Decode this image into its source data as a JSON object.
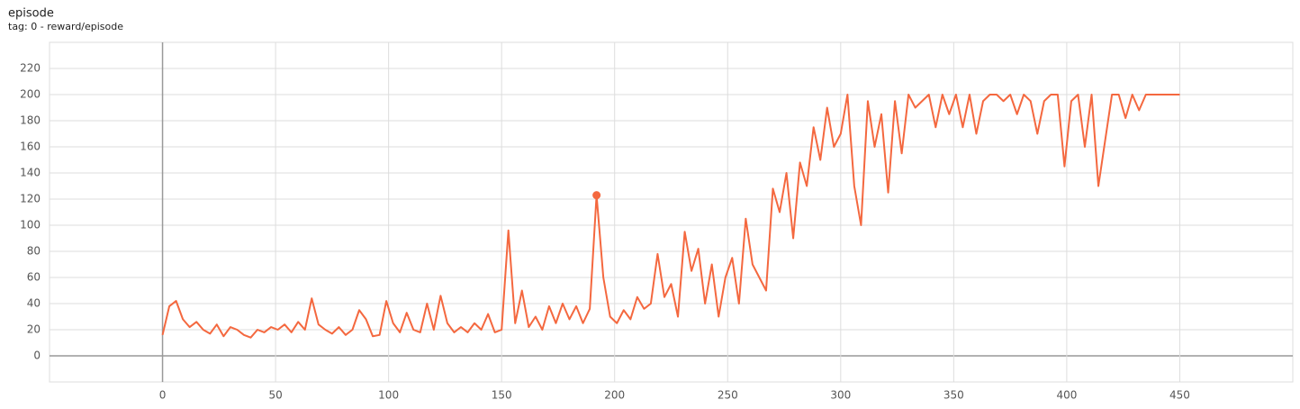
{
  "chart_data": {
    "type": "line",
    "title": "episode",
    "subtitle": "tag: 0 - reward/episode",
    "x": [
      0,
      3,
      6,
      9,
      12,
      15,
      18,
      21,
      24,
      27,
      30,
      33,
      36,
      39,
      42,
      45,
      48,
      51,
      54,
      57,
      60,
      63,
      66,
      69,
      72,
      75,
      78,
      81,
      84,
      87,
      90,
      93,
      96,
      99,
      102,
      105,
      108,
      111,
      114,
      117,
      120,
      123,
      126,
      129,
      132,
      135,
      138,
      141,
      144,
      147,
      150,
      153,
      156,
      159,
      162,
      165,
      168,
      171,
      174,
      177,
      180,
      183,
      186,
      189,
      192,
      195,
      198,
      201,
      204,
      207,
      210,
      213,
      216,
      219,
      222,
      225,
      228,
      231,
      234,
      237,
      240,
      243,
      246,
      249,
      252,
      255,
      258,
      261,
      264,
      267,
      270,
      273,
      276,
      279,
      282,
      285,
      288,
      291,
      294,
      297,
      300,
      303,
      306,
      309,
      312,
      315,
      318,
      321,
      324,
      327,
      330,
      333,
      336,
      339,
      342,
      345,
      348,
      351,
      354,
      357,
      360,
      363,
      366,
      369,
      372,
      375,
      378,
      381,
      384,
      387,
      390,
      393,
      396,
      399,
      402,
      405,
      408,
      411,
      414,
      417,
      420,
      423,
      426,
      429,
      432,
      435,
      438,
      441,
      444,
      447,
      450
    ],
    "series": [
      {
        "name": "reward/episode",
        "color": "#f4683f",
        "values": [
          16,
          38,
          42,
          28,
          22,
          26,
          20,
          17,
          24,
          15,
          22,
          20,
          16,
          14,
          20,
          18,
          22,
          20,
          24,
          18,
          26,
          20,
          44,
          24,
          20,
          17,
          22,
          16,
          20,
          35,
          28,
          15,
          16,
          42,
          25,
          18,
          33,
          20,
          18,
          40,
          20,
          46,
          25,
          18,
          22,
          18,
          25,
          20,
          32,
          18,
          20,
          96,
          25,
          50,
          22,
          30,
          20,
          38,
          25,
          40,
          28,
          38,
          25,
          36,
          123,
          60,
          30,
          25,
          35,
          28,
          45,
          36,
          40,
          78,
          45,
          55,
          30,
          95,
          65,
          82,
          40,
          70,
          30,
          60,
          75,
          40,
          105,
          70,
          60,
          50,
          128,
          110,
          140,
          90,
          148,
          130,
          175,
          150,
          190,
          160,
          170,
          200,
          130,
          100,
          195,
          160,
          185,
          125,
          195,
          155,
          200,
          190,
          195,
          200,
          175,
          200,
          185,
          200,
          175,
          200,
          170,
          195,
          200,
          200,
          195,
          200,
          185,
          200,
          195,
          170,
          195,
          200,
          200,
          145,
          195,
          200,
          160,
          200,
          130,
          165,
          200,
          200,
          182,
          200,
          188,
          200,
          200,
          200,
          200,
          200,
          200
        ]
      }
    ],
    "highlight": {
      "x": 192,
      "y": 123
    },
    "xlim": [
      -50,
      500
    ],
    "ylim": [
      -20,
      240
    ],
    "xticks": [
      0,
      50,
      100,
      150,
      200,
      250,
      300,
      350,
      400,
      450
    ],
    "yticks": [
      0,
      20,
      40,
      60,
      80,
      100,
      120,
      140,
      160,
      180,
      200,
      220
    ],
    "grid": true
  }
}
